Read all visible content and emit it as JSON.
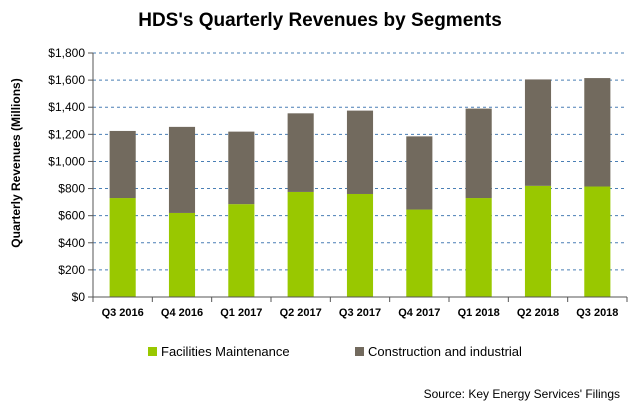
{
  "chart_data": {
    "type": "bar",
    "stacked": true,
    "title": "HDS's Quarterly Revenues by Segments",
    "ylabel": "Quarterly Revenues (Millions)",
    "xlabel": "",
    "categories": [
      "Q3 2016",
      "Q4 2016",
      "Q1 2017",
      "Q2 2017",
      "Q3 2017",
      "Q4 2017",
      "Q1 2018",
      "Q2 2018",
      "Q3 2018"
    ],
    "series": [
      {
        "name": "Facilities Maintenance",
        "color": "#99c800",
        "values": [
          730,
          620,
          685,
          775,
          760,
          645,
          730,
          820,
          815
        ]
      },
      {
        "name": "Construction and industrial",
        "color": "#726a5e",
        "values": [
          495,
          635,
          535,
          580,
          615,
          540,
          660,
          785,
          800
        ]
      }
    ],
    "ylim": [
      0,
      1800
    ],
    "yticks": [
      0,
      200,
      400,
      600,
      800,
      1000,
      1200,
      1400,
      1600,
      1800
    ],
    "ytick_labels": [
      "$0",
      "$200",
      "$400",
      "$600",
      "$800",
      "$1,000",
      "$1,200",
      "$1,400",
      "$1,600",
      "$1,800"
    ],
    "grid": true,
    "grid_style": "dashed",
    "legend_position": "bottom",
    "source": "Source: Key Energy Services' Filings"
  }
}
